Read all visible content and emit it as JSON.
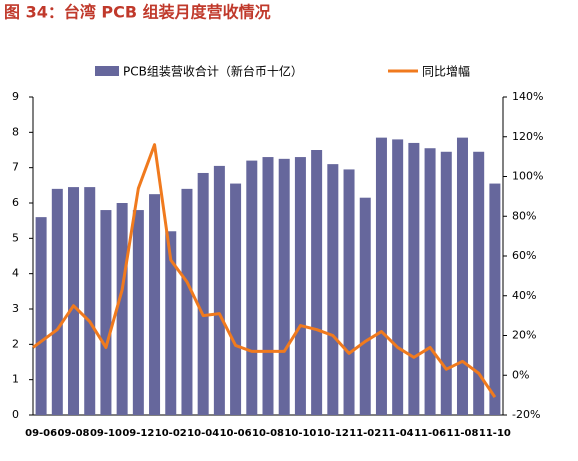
{
  "chart_data": {
    "type": "bar_line",
    "title": "图 34：台湾 PCB 组装月度营收情况",
    "categories": [
      "09-06",
      null,
      "09-08",
      null,
      "09-10",
      null,
      "09-12",
      null,
      "10-02",
      null,
      "10-04",
      null,
      "10-06",
      null,
      "10-08",
      null,
      "10-10",
      null,
      "10-12",
      null,
      "11-02",
      null,
      "11-04",
      null,
      "11-06",
      null,
      "11-08",
      null,
      "11-10"
    ],
    "series": [
      {
        "name": "PCB组装营收合计（新台币十亿）",
        "color": "#66679c",
        "type": "bar",
        "values": [
          5.6,
          6.4,
          6.45,
          6.45,
          5.8,
          6.0,
          5.8,
          6.25,
          5.2,
          6.4,
          6.85,
          7.05,
          6.55,
          7.2,
          7.3,
          7.25,
          7.3,
          7.5,
          7.1,
          6.95,
          6.15,
          7.85,
          7.8,
          7.7,
          7.55,
          7.45,
          7.85,
          7.45,
          6.55
        ]
      },
      {
        "name": "同比增幅",
        "color": "#f07a1e",
        "type": "line",
        "axis": "y2",
        "values": [
          14,
          23,
          35,
          27,
          14,
          43,
          94,
          116,
          58,
          47,
          30,
          31,
          15,
          12,
          12,
          12,
          25,
          23,
          20,
          11,
          17,
          22,
          14,
          9,
          14,
          3,
          7,
          1,
          -11
        ]
      }
    ],
    "ylim": [
      0,
      9
    ],
    "yticks": [
      0,
      1,
      2,
      3,
      4,
      5,
      6,
      7,
      8,
      9
    ],
    "y2lim": [
      -20,
      140
    ],
    "y2ticks": [
      {
        "value": -20,
        "label": "-20%"
      },
      {
        "value": 0,
        "label": "0%"
      },
      {
        "value": 20,
        "label": "20%"
      },
      {
        "value": 40,
        "label": "40%"
      },
      {
        "value": 60,
        "label": "60%"
      },
      {
        "value": 80,
        "label": "80%"
      },
      {
        "value": 100,
        "label": "100%"
      },
      {
        "value": 120,
        "label": "120%"
      },
      {
        "value": 140,
        "label": "140%"
      }
    ]
  }
}
